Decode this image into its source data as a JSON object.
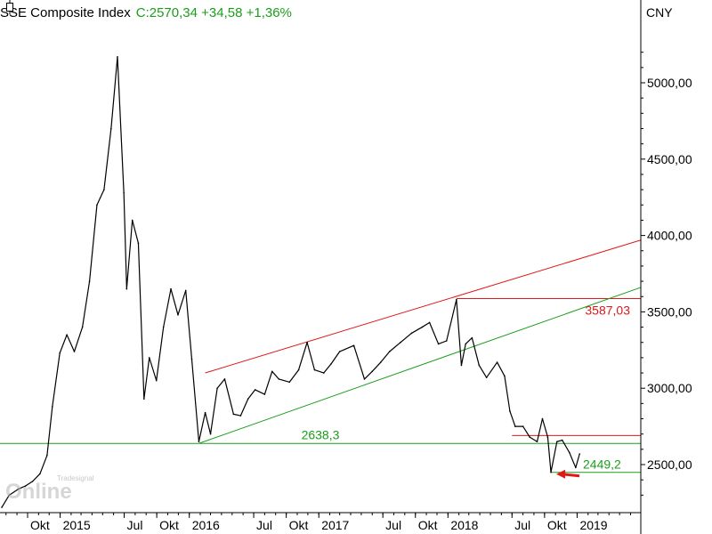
{
  "header": {
    "title": "SSE Composite Index",
    "quote": "C:2570,34 +34,58 +1,36%",
    "currency": "CNY"
  },
  "watermark": {
    "brand_top": "Tradesignal",
    "brand_main": "Online"
  },
  "colors": {
    "price": "#000000",
    "support": "#1a9e1a",
    "resistance": "#e01818",
    "arrow": "#e01818",
    "axis": "#000000"
  },
  "chart_data": {
    "type": "line",
    "title": "SSE Composite Index",
    "ylabel": "",
    "xlabel": "",
    "ylim": [
      2200,
      5400
    ],
    "x_ticks": [
      {
        "label": "Okt",
        "date": "2014-10-01"
      },
      {
        "label": "2015",
        "date": "2015-01-01"
      },
      {
        "label": "Jul",
        "date": "2015-07-01"
      },
      {
        "label": "Okt",
        "date": "2015-10-01"
      },
      {
        "label": "2016",
        "date": "2016-01-01"
      },
      {
        "label": "Jul",
        "date": "2016-07-01"
      },
      {
        "label": "Okt",
        "date": "2016-10-01"
      },
      {
        "label": "2017",
        "date": "2017-01-01"
      },
      {
        "label": "Jul",
        "date": "2017-07-01"
      },
      {
        "label": "Okt",
        "date": "2017-10-01"
      },
      {
        "label": "2018",
        "date": "2018-01-01"
      },
      {
        "label": "Jul",
        "date": "2018-07-01"
      },
      {
        "label": "Okt",
        "date": "2018-10-01"
      },
      {
        "label": "2019",
        "date": "2019-01-01"
      }
    ],
    "y_ticks": [
      {
        "value": 2500,
        "label": "2500,00"
      },
      {
        "value": 3000,
        "label": "3000,00"
      },
      {
        "value": 3500,
        "label": "3500,00"
      },
      {
        "value": 4000,
        "label": "4000,00"
      },
      {
        "value": 4500,
        "label": "4500,00"
      },
      {
        "value": 5000,
        "label": "5000,00"
      }
    ],
    "series": [
      {
        "points": [
          [
            "2014-07-20",
            2220
          ],
          [
            "2014-08-10",
            2300
          ],
          [
            "2014-09-05",
            2340
          ],
          [
            "2014-09-25",
            2360
          ],
          [
            "2014-10-15",
            2390
          ],
          [
            "2014-11-05",
            2440
          ],
          [
            "2014-11-25",
            2560
          ],
          [
            "2014-12-10",
            2880
          ],
          [
            "2014-12-31",
            3230
          ],
          [
            "2015-01-20",
            3350
          ],
          [
            "2015-02-10",
            3240
          ],
          [
            "2015-03-05",
            3400
          ],
          [
            "2015-03-25",
            3700
          ],
          [
            "2015-04-15",
            4200
          ],
          [
            "2015-05-05",
            4300
          ],
          [
            "2015-05-25",
            4700
          ],
          [
            "2015-06-12",
            5170
          ],
          [
            "2015-06-30",
            4280
          ],
          [
            "2015-07-08",
            3650
          ],
          [
            "2015-07-24",
            4100
          ],
          [
            "2015-08-10",
            3950
          ],
          [
            "2015-08-26",
            2930
          ],
          [
            "2015-09-10",
            3200
          ],
          [
            "2015-09-30",
            3050
          ],
          [
            "2015-10-20",
            3400
          ],
          [
            "2015-11-10",
            3650
          ],
          [
            "2015-11-30",
            3480
          ],
          [
            "2015-12-22",
            3640
          ],
          [
            "2016-01-08",
            3190
          ],
          [
            "2016-01-28",
            2650
          ],
          [
            "2016-02-15",
            2840
          ],
          [
            "2016-03-01",
            2700
          ],
          [
            "2016-03-20",
            3000
          ],
          [
            "2016-04-10",
            3060
          ],
          [
            "2016-05-05",
            2830
          ],
          [
            "2016-05-25",
            2820
          ],
          [
            "2016-06-15",
            2930
          ],
          [
            "2016-07-05",
            2990
          ],
          [
            "2016-08-01",
            2960
          ],
          [
            "2016-08-22",
            3110
          ],
          [
            "2016-09-10",
            3060
          ],
          [
            "2016-10-10",
            3040
          ],
          [
            "2016-11-05",
            3120
          ],
          [
            "2016-11-29",
            3300
          ],
          [
            "2016-12-20",
            3120
          ],
          [
            "2017-01-15",
            3100
          ],
          [
            "2017-02-05",
            3160
          ],
          [
            "2017-03-01",
            3240
          ],
          [
            "2017-04-10",
            3280
          ],
          [
            "2017-05-10",
            3060
          ],
          [
            "2017-06-01",
            3110
          ],
          [
            "2017-06-25",
            3170
          ],
          [
            "2017-07-20",
            3240
          ],
          [
            "2017-08-20",
            3300
          ],
          [
            "2017-09-20",
            3360
          ],
          [
            "2017-10-20",
            3400
          ],
          [
            "2017-11-10",
            3430
          ],
          [
            "2017-12-05",
            3290
          ],
          [
            "2017-12-28",
            3310
          ],
          [
            "2018-01-25",
            3580
          ],
          [
            "2018-02-08",
            3150
          ],
          [
            "2018-02-20",
            3290
          ],
          [
            "2018-03-10",
            3330
          ],
          [
            "2018-03-30",
            3150
          ],
          [
            "2018-04-20",
            3070
          ],
          [
            "2018-05-20",
            3170
          ],
          [
            "2018-06-10",
            3080
          ],
          [
            "2018-06-25",
            2850
          ],
          [
            "2018-07-10",
            2750
          ],
          [
            "2018-08-01",
            2750
          ],
          [
            "2018-08-20",
            2680
          ],
          [
            "2018-09-10",
            2650
          ],
          [
            "2018-09-25",
            2800
          ],
          [
            "2018-10-10",
            2680
          ],
          [
            "2018-10-19",
            2450
          ],
          [
            "2018-11-05",
            2650
          ],
          [
            "2018-11-20",
            2660
          ],
          [
            "2018-12-10",
            2580
          ],
          [
            "2018-12-28",
            2480
          ],
          [
            "2019-01-08",
            2570
          ]
        ]
      }
    ],
    "resistance_trend": {
      "start": [
        "2016-02-15",
        3100
      ],
      "end": [
        "2019-06-30",
        3970
      ]
    },
    "support_trend": {
      "start": [
        "2016-01-28",
        2638.3
      ],
      "end": [
        "2019-06-30",
        3660
      ]
    },
    "horizontal_levels": [
      {
        "value": 3587.03,
        "label": "3587,03",
        "color": "red",
        "from": "2018-01-25"
      },
      {
        "value": 2690,
        "label": "",
        "color": "red",
        "from": "2018-07-01"
      },
      {
        "value": 2638.3,
        "label": "2638,3",
        "color": "green",
        "from": "2014-07-01"
      },
      {
        "value": 2449.2,
        "label": "2449,2",
        "color": "green",
        "from": "2018-10-19"
      }
    ],
    "annotations": [
      {
        "type": "arrow",
        "color": "red",
        "points_to": [
          "2018-10-19",
          2449.2
        ]
      }
    ],
    "grid": false,
    "legend": "none"
  }
}
